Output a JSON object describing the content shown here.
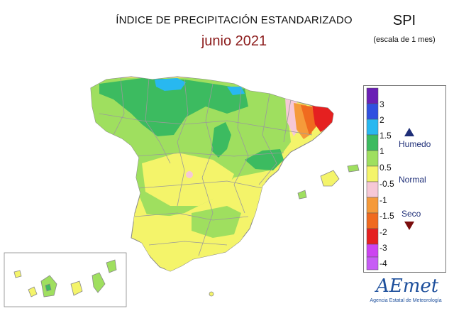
{
  "header": {
    "title": "ÍNDICE DE PRECIPITACIÓN ESTANDARIZADO",
    "period": "junio 2021",
    "index_name": "SPI",
    "scale_note": "(escala de 1 mes)"
  },
  "legend": {
    "labels": [
      "3",
      "2",
      "1.5",
      "1",
      "0.5",
      "-0.5",
      "-1",
      "-1.5",
      "-2",
      "-3",
      "-4"
    ],
    "colors": [
      "#6a1fb5",
      "#3050e0",
      "#28b8f0",
      "#3cbb60",
      "#9fdf5f",
      "#f4f46a",
      "#f6c8d6",
      "#f59a3a",
      "#f06a1f",
      "#e52020",
      "#cc44f0",
      "#c75cf5"
    ],
    "humedo_label": "Humedo",
    "normal_label": "Normal",
    "seco_label": "Seco"
  },
  "colors": {
    "very_wet": "#28b8f0",
    "wet": "#3cbb60",
    "moderately_wet": "#9fdf5f",
    "normal": "#f4f46a",
    "slightly_dry": "#f6c8d6",
    "dry": "#f59a3a",
    "very_dry": "#f06a1f",
    "extremely_dry": "#e52020",
    "sea": "#ffffff"
  },
  "logo": {
    "name": "AEmet",
    "subtitle": "Agencia Estatal de Meteorología"
  }
}
